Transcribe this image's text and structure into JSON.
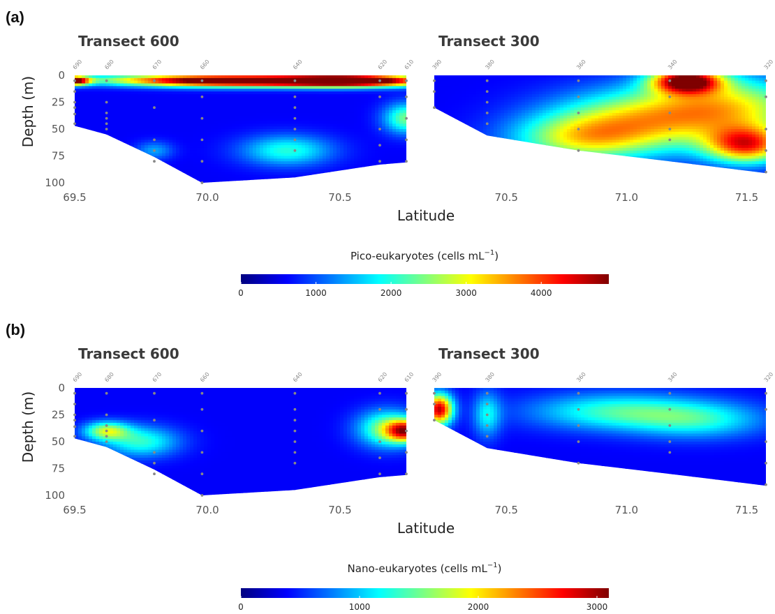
{
  "colors": {
    "jet": [
      "#00007f",
      "#0000ff",
      "#007fff",
      "#00ffff",
      "#7fff7f",
      "#ffff00",
      "#ff7f00",
      "#ff0000",
      "#7f0000"
    ],
    "sample_dot": "#888888"
  },
  "labels": {
    "panel_a": "(a)",
    "panel_b": "(b)",
    "transect_600": "Transect 600",
    "transect_300": "Transect 300",
    "y_axis": "Depth (m)",
    "x_axis": "Latitude",
    "colorbar_a": "Pico-eukaryotes (cells mL",
    "colorbar_b": "Nano-eukaryotes (cells mL",
    "colorbar_unit_sup": "−1",
    "colorbar_close": ")"
  },
  "chart_data": [
    {
      "type": "heatmap",
      "panel": "(a)",
      "variable": "Pico-eukaryotes (cells mL⁻¹)",
      "colorbar": {
        "min": 0,
        "max": 4900,
        "ticks": [
          0,
          1000,
          2000,
          3000,
          4000
        ],
        "tick_labels": [
          "0",
          "1000",
          "2000",
          "3000",
          "4000"
        ]
      },
      "subplots": [
        {
          "title": "Transect 600",
          "xlabel": "Latitude",
          "ylabel": "Depth (m)",
          "xlim": [
            69.5,
            70.75
          ],
          "ylim": [
            100,
            0
          ],
          "x_ticks": [
            69.5,
            70.0,
            70.5
          ],
          "x_tick_labels": [
            "69.5",
            "70.0",
            "70.5"
          ],
          "y_ticks": [
            0,
            25,
            50,
            75,
            100
          ],
          "y_tick_labels": [
            "0",
            "25",
            "50",
            "75",
            "100"
          ],
          "stations": [
            {
              "name": "690",
              "lat": 69.5,
              "max_depth": 47
            },
            {
              "name": "680",
              "lat": 69.62,
              "max_depth": 55
            },
            {
              "name": "670",
              "lat": 69.8,
              "max_depth": 76
            },
            {
              "name": "660",
              "lat": 69.98,
              "max_depth": 100
            },
            {
              "name": "640",
              "lat": 70.33,
              "max_depth": 95
            },
            {
              "name": "620",
              "lat": 70.65,
              "max_depth": 83
            },
            {
              "name": "610",
              "lat": 70.75,
              "max_depth": 81
            }
          ],
          "samples": [
            [
              69.5,
              5
            ],
            [
              69.5,
              15
            ],
            [
              69.5,
              25
            ],
            [
              69.5,
              30
            ],
            [
              69.5,
              36
            ],
            [
              69.5,
              45
            ],
            [
              69.62,
              5
            ],
            [
              69.62,
              25
            ],
            [
              69.62,
              35
            ],
            [
              69.62,
              40
            ],
            [
              69.62,
              45
            ],
            [
              69.62,
              50
            ],
            [
              69.8,
              5
            ],
            [
              69.8,
              30
            ],
            [
              69.8,
              60
            ],
            [
              69.8,
              70
            ],
            [
              69.8,
              80
            ],
            [
              69.98,
              5
            ],
            [
              69.98,
              20
            ],
            [
              69.98,
              40
            ],
            [
              69.98,
              60
            ],
            [
              69.98,
              80
            ],
            [
              69.98,
              100
            ],
            [
              70.33,
              5
            ],
            [
              70.33,
              20
            ],
            [
              70.33,
              30
            ],
            [
              70.33,
              40
            ],
            [
              70.33,
              50
            ],
            [
              70.33,
              60
            ],
            [
              70.33,
              70
            ],
            [
              70.65,
              5
            ],
            [
              70.65,
              20
            ],
            [
              70.65,
              50
            ],
            [
              70.65,
              65
            ],
            [
              70.65,
              80
            ],
            [
              70.75,
              5
            ],
            [
              70.75,
              20
            ],
            [
              70.75,
              40
            ],
            [
              70.75,
              60
            ],
            [
              70.75,
              80
            ]
          ],
          "features": [
            {
              "lat": 69.5,
              "depth": 5,
              "value": 4700,
              "lat_spread": 0.04,
              "depth_spread": 3
            },
            {
              "lat": 70.55,
              "depth": 5,
              "value": 4500,
              "lat_spread": 0.2,
              "depth_spread": 4
            },
            {
              "lat": 70.3,
              "depth": 5,
              "value": 3800,
              "lat_spread": 0.3,
              "depth_spread": 4
            },
            {
              "lat": 70.0,
              "depth": 5,
              "value": 3200,
              "lat_spread": 0.2,
              "depth_spread": 4
            },
            {
              "lat": 69.7,
              "depth": 4,
              "value": 1800,
              "lat_spread": 0.2,
              "depth_spread": 4
            },
            {
              "lat": 70.3,
              "depth": 70,
              "value": 2000,
              "lat_spread": 0.12,
              "depth_spread": 10
            },
            {
              "lat": 70.75,
              "depth": 40,
              "value": 2400,
              "lat_spread": 0.06,
              "depth_spread": 10
            },
            {
              "lat": 69.8,
              "depth": 70,
              "value": 1400,
              "lat_spread": 0.05,
              "depth_spread": 6
            }
          ]
        },
        {
          "title": "Transect 300",
          "xlabel": "Latitude",
          "ylabel": "Depth (m)",
          "xlim": [
            70.2,
            71.58
          ],
          "ylim": [
            100,
            0
          ],
          "x_ticks": [
            70.5,
            71.0,
            71.5
          ],
          "x_tick_labels": [
            "70.5",
            "71.0",
            "71.5"
          ],
          "stations": [
            {
              "name": "390",
              "lat": 70.2,
              "max_depth": 30
            },
            {
              "name": "380",
              "lat": 70.42,
              "max_depth": 56
            },
            {
              "name": "360",
              "lat": 70.8,
              "max_depth": 70
            },
            {
              "name": "340",
              "lat": 71.18,
              "max_depth": 80
            },
            {
              "name": "320",
              "lat": 71.58,
              "max_depth": 91
            }
          ],
          "samples": [
            [
              70.2,
              5
            ],
            [
              70.2,
              15
            ],
            [
              70.2,
              30
            ],
            [
              70.42,
              5
            ],
            [
              70.42,
              15
            ],
            [
              70.42,
              25
            ],
            [
              70.42,
              35
            ],
            [
              70.42,
              45
            ],
            [
              70.8,
              5
            ],
            [
              70.8,
              20
            ],
            [
              70.8,
              35
            ],
            [
              70.8,
              50
            ],
            [
              70.8,
              70
            ],
            [
              71.18,
              5
            ],
            [
              71.18,
              20
            ],
            [
              71.18,
              35
            ],
            [
              71.18,
              50
            ],
            [
              71.18,
              60
            ],
            [
              71.58,
              5
            ],
            [
              71.58,
              20
            ],
            [
              71.58,
              50
            ],
            [
              71.58,
              70
            ],
            [
              71.58,
              90
            ]
          ],
          "features": [
            {
              "lat": 71.25,
              "depth": 5,
              "value": 4700,
              "lat_spread": 0.1,
              "depth_spread": 8
            },
            {
              "lat": 71.4,
              "depth": 30,
              "value": 3100,
              "lat_spread": 0.25,
              "depth_spread": 20
            },
            {
              "lat": 71.5,
              "depth": 65,
              "value": 3800,
              "lat_spread": 0.12,
              "depth_spread": 12
            },
            {
              "lat": 71.0,
              "depth": 45,
              "value": 2600,
              "lat_spread": 0.25,
              "depth_spread": 20
            },
            {
              "lat": 70.8,
              "depth": 60,
              "value": 2200,
              "lat_spread": 0.2,
              "depth_spread": 15
            }
          ]
        }
      ]
    },
    {
      "type": "heatmap",
      "panel": "(b)",
      "variable": "Nano-eukaryotes (cells mL⁻¹)",
      "colorbar": {
        "min": 0,
        "max": 3100,
        "ticks": [
          0,
          1000,
          2000,
          3000
        ],
        "tick_labels": [
          "0",
          "1000",
          "2000",
          "3000"
        ]
      },
      "subplots": [
        {
          "title": "Transect 600",
          "xlabel": "Latitude",
          "ylabel": "Depth (m)",
          "xlim": [
            69.5,
            70.75
          ],
          "ylim": [
            100,
            0
          ],
          "x_ticks": [
            69.5,
            70.0,
            70.5
          ],
          "x_tick_labels": [
            "69.5",
            "70.0",
            "70.5"
          ],
          "y_ticks": [
            0,
            25,
            50,
            75,
            100
          ],
          "y_tick_labels": [
            "0",
            "25",
            "50",
            "75",
            "100"
          ],
          "stations": [
            {
              "name": "690",
              "lat": 69.5,
              "max_depth": 47
            },
            {
              "name": "680",
              "lat": 69.62,
              "max_depth": 55
            },
            {
              "name": "670",
              "lat": 69.8,
              "max_depth": 76
            },
            {
              "name": "660",
              "lat": 69.98,
              "max_depth": 100
            },
            {
              "name": "640",
              "lat": 70.33,
              "max_depth": 95
            },
            {
              "name": "620",
              "lat": 70.65,
              "max_depth": 83
            },
            {
              "name": "610",
              "lat": 70.75,
              "max_depth": 81
            }
          ],
          "samples": [
            [
              69.5,
              5
            ],
            [
              69.5,
              15
            ],
            [
              69.5,
              25
            ],
            [
              69.5,
              30
            ],
            [
              69.5,
              36
            ],
            [
              69.5,
              45
            ],
            [
              69.62,
              5
            ],
            [
              69.62,
              25
            ],
            [
              69.62,
              35
            ],
            [
              69.62,
              40
            ],
            [
              69.62,
              45
            ],
            [
              69.62,
              50
            ],
            [
              69.8,
              5
            ],
            [
              69.8,
              30
            ],
            [
              69.8,
              60
            ],
            [
              69.8,
              70
            ],
            [
              69.8,
              80
            ],
            [
              69.98,
              5
            ],
            [
              69.98,
              20
            ],
            [
              69.98,
              40
            ],
            [
              69.98,
              60
            ],
            [
              69.98,
              80
            ],
            [
              69.98,
              100
            ],
            [
              70.33,
              5
            ],
            [
              70.33,
              20
            ],
            [
              70.33,
              30
            ],
            [
              70.33,
              40
            ],
            [
              70.33,
              50
            ],
            [
              70.33,
              60
            ],
            [
              70.33,
              70
            ],
            [
              70.65,
              5
            ],
            [
              70.65,
              20
            ],
            [
              70.65,
              50
            ],
            [
              70.65,
              65
            ],
            [
              70.65,
              80
            ],
            [
              70.75,
              5
            ],
            [
              70.75,
              20
            ],
            [
              70.75,
              40
            ],
            [
              70.75,
              60
            ],
            [
              70.75,
              80
            ]
          ],
          "features": [
            {
              "lat": 69.62,
              "depth": 40,
              "value": 1650,
              "lat_spread": 0.06,
              "depth_spread": 6
            },
            {
              "lat": 69.75,
              "depth": 50,
              "value": 1300,
              "lat_spread": 0.1,
              "depth_spread": 10
            },
            {
              "lat": 70.75,
              "depth": 40,
              "value": 2300,
              "lat_spread": 0.05,
              "depth_spread": 7
            },
            {
              "lat": 70.68,
              "depth": 38,
              "value": 1600,
              "lat_spread": 0.08,
              "depth_spread": 12
            }
          ]
        },
        {
          "title": "Transect 300",
          "xlabel": "Latitude",
          "ylabel": "Depth (m)",
          "xlim": [
            70.2,
            71.58
          ],
          "ylim": [
            100,
            0
          ],
          "x_ticks": [
            70.5,
            71.0,
            71.5
          ],
          "x_tick_labels": [
            "70.5",
            "71.0",
            "71.5"
          ],
          "stations": [
            {
              "name": "390",
              "lat": 70.2,
              "max_depth": 30
            },
            {
              "name": "380",
              "lat": 70.42,
              "max_depth": 56
            },
            {
              "name": "360",
              "lat": 70.8,
              "max_depth": 70
            },
            {
              "name": "340",
              "lat": 71.18,
              "max_depth": 80
            },
            {
              "name": "320",
              "lat": 71.58,
              "max_depth": 91
            }
          ],
          "samples": [
            [
              70.2,
              5
            ],
            [
              70.2,
              15
            ],
            [
              70.2,
              30
            ],
            [
              70.42,
              5
            ],
            [
              70.42,
              15
            ],
            [
              70.42,
              25
            ],
            [
              70.42,
              35
            ],
            [
              70.42,
              45
            ],
            [
              70.8,
              5
            ],
            [
              70.8,
              20
            ],
            [
              70.8,
              35
            ],
            [
              70.8,
              50
            ],
            [
              70.8,
              70
            ],
            [
              71.18,
              5
            ],
            [
              71.18,
              20
            ],
            [
              71.18,
              35
            ],
            [
              71.18,
              50
            ],
            [
              71.18,
              60
            ],
            [
              71.58,
              5
            ],
            [
              71.58,
              20
            ],
            [
              71.58,
              50
            ],
            [
              71.58,
              70
            ],
            [
              71.58,
              90
            ]
          ],
          "features": [
            {
              "lat": 70.22,
              "depth": 20,
              "value": 2900,
              "lat_spread": 0.04,
              "depth_spread": 10
            },
            {
              "lat": 70.42,
              "depth": 25,
              "value": 1100,
              "lat_spread": 0.04,
              "depth_spread": 15
            },
            {
              "lat": 70.95,
              "depth": 22,
              "value": 1300,
              "lat_spread": 0.25,
              "depth_spread": 12
            },
            {
              "lat": 71.3,
              "depth": 30,
              "value": 1150,
              "lat_spread": 0.2,
              "depth_spread": 12
            }
          ]
        }
      ]
    }
  ]
}
